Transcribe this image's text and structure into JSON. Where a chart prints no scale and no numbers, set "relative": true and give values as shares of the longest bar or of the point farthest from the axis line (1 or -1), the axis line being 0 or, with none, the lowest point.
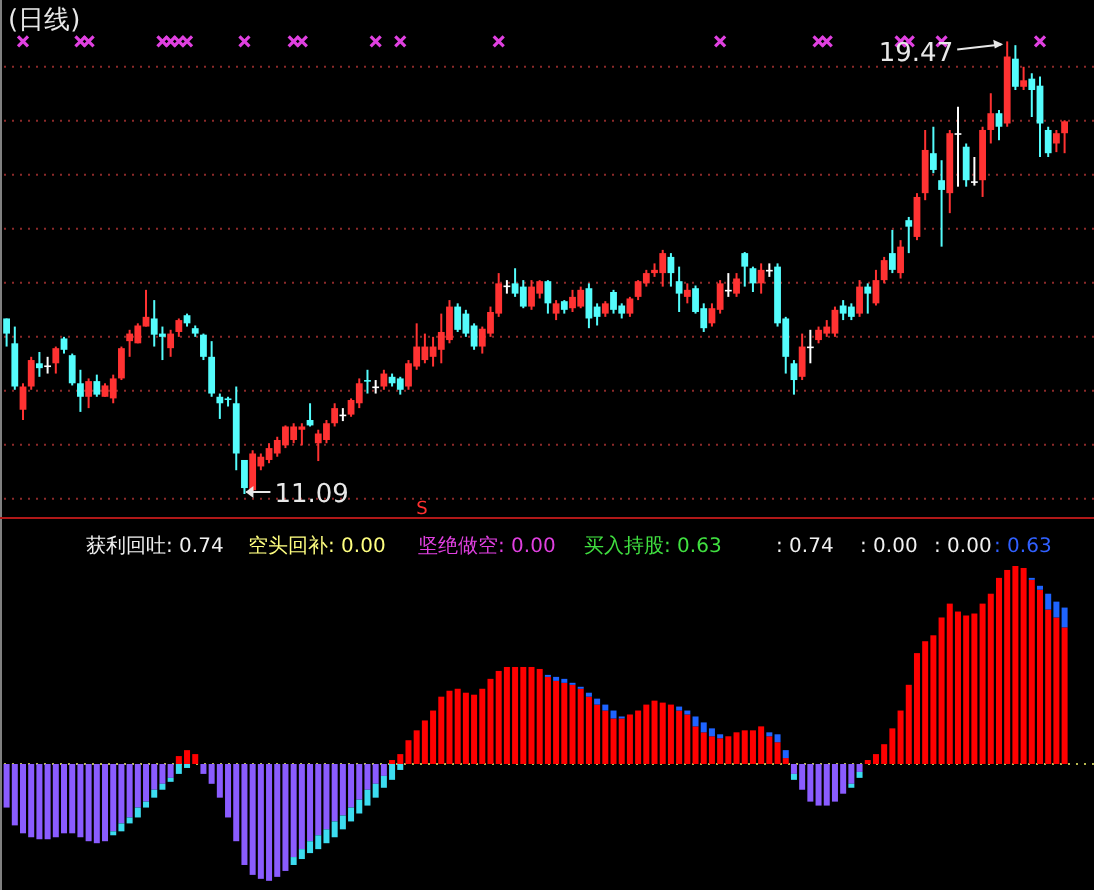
{
  "chart_data": [
    {
      "type": "candlestick",
      "title": "(日线)",
      "grid": "y",
      "categories": [
        null,
        null,
        null,
        null,
        null,
        null,
        null,
        null,
        null,
        null,
        null,
        null,
        null,
        null,
        null,
        null,
        null,
        null,
        null,
        null,
        null,
        null,
        null,
        null,
        null,
        null,
        null,
        null,
        null,
        null,
        null,
        null,
        null,
        null,
        null,
        null,
        null,
        null,
        null,
        null,
        null,
        null,
        null,
        null,
        null,
        null,
        null,
        null,
        null,
        null,
        null,
        null,
        null,
        null,
        null,
        null,
        null,
        null,
        null,
        null,
        null,
        null,
        null,
        null,
        null,
        null,
        null,
        null,
        null,
        null,
        null,
        null,
        null,
        null,
        null,
        null,
        null,
        null,
        null,
        null,
        null,
        null,
        null,
        null,
        null,
        null,
        null,
        null,
        null,
        null,
        null,
        null,
        null,
        null,
        null,
        null,
        null,
        null,
        null,
        null,
        null,
        null,
        null,
        null,
        null,
        null,
        null,
        null,
        null,
        null,
        null,
        null,
        null,
        null,
        null,
        null,
        null,
        null,
        null,
        null,
        null,
        null,
        null,
        null,
        null,
        null,
        null,
        null,
        null,
        null
      ],
      "ohlc": [
        [
          14.34,
          14.34,
          13.82,
          14.06
        ],
        [
          13.88,
          14.19,
          13.02,
          13.08
        ],
        [
          12.65,
          13.14,
          12.46,
          13.08
        ],
        [
          13.08,
          13.63,
          13.02,
          13.57
        ],
        [
          13.51,
          13.72,
          13.26,
          13.42
        ],
        [
          13.47,
          13.63,
          13.32,
          13.47
        ],
        [
          13.51,
          13.82,
          13.32,
          13.79
        ],
        [
          13.97,
          14.0,
          13.69,
          13.76
        ],
        [
          13.66,
          13.69,
          13.1,
          13.14
        ],
        [
          13.14,
          13.39,
          12.61,
          12.89
        ],
        [
          12.89,
          13.23,
          12.68,
          13.18
        ],
        [
          13.18,
          13.3,
          12.89,
          12.93
        ],
        [
          12.89,
          13.14,
          12.89,
          13.1
        ],
        [
          12.86,
          13.3,
          12.77,
          13.23
        ],
        [
          13.23,
          13.82,
          13.2,
          13.79
        ],
        [
          13.92,
          14.13,
          13.63,
          14.06
        ],
        [
          13.88,
          14.25,
          13.88,
          14.21
        ],
        [
          14.19,
          14.87,
          14.19,
          14.37
        ],
        [
          14.34,
          14.68,
          13.82,
          14.04
        ],
        [
          14.06,
          14.19,
          13.57,
          14.0
        ],
        [
          13.79,
          14.13,
          13.63,
          14.06
        ],
        [
          14.09,
          14.34,
          14.0,
          14.31
        ],
        [
          14.4,
          14.43,
          14.19,
          14.25
        ],
        [
          14.16,
          14.21,
          14.0,
          14.06
        ],
        [
          14.04,
          14.06,
          13.57,
          13.63
        ],
        [
          13.63,
          13.92,
          12.89,
          12.95
        ],
        [
          12.89,
          12.95,
          12.48,
          12.77
        ],
        [
          12.86,
          12.89,
          12.71,
          12.83
        ],
        [
          12.77,
          13.08,
          11.53,
          11.84
        ],
        [
          11.72,
          11.72,
          11.09,
          11.2
        ],
        [
          11.16,
          11.9,
          11.13,
          11.84
        ],
        [
          11.6,
          11.84,
          11.53,
          11.78
        ],
        [
          11.72,
          12.03,
          11.66,
          11.94
        ],
        [
          11.84,
          12.15,
          11.78,
          12.09
        ],
        [
          11.99,
          12.36,
          11.94,
          12.34
        ],
        [
          12.09,
          12.4,
          12.03,
          12.34
        ],
        [
          12.28,
          12.4,
          11.99,
          12.34
        ],
        [
          12.46,
          12.77,
          12.34,
          12.36
        ],
        [
          12.03,
          12.28,
          11.7,
          12.21
        ],
        [
          12.09,
          12.46,
          12.03,
          12.4
        ],
        [
          12.4,
          12.77,
          12.34,
          12.68
        ],
        [
          12.56,
          12.68,
          12.44,
          12.56
        ],
        [
          12.56,
          12.86,
          12.52,
          12.83
        ],
        [
          12.77,
          13.23,
          12.68,
          13.14
        ],
        [
          13.2,
          13.39,
          12.95,
          13.18
        ],
        [
          13.08,
          13.2,
          12.95,
          13.08
        ],
        [
          13.08,
          13.39,
          13.02,
          13.32
        ],
        [
          13.26,
          13.32,
          13.08,
          13.14
        ],
        [
          13.23,
          13.26,
          12.93,
          13.02
        ],
        [
          13.08,
          13.57,
          13.02,
          13.51
        ],
        [
          13.45,
          14.25,
          13.39,
          13.82
        ],
        [
          13.57,
          14.06,
          13.51,
          13.82
        ],
        [
          13.63,
          14.0,
          13.45,
          13.82
        ],
        [
          13.76,
          14.43,
          13.51,
          14.09
        ],
        [
          13.94,
          14.68,
          13.88,
          14.56
        ],
        [
          14.56,
          14.62,
          14.09,
          14.13
        ],
        [
          14.43,
          14.5,
          14.0,
          14.06
        ],
        [
          14.21,
          14.25,
          13.76,
          13.82
        ],
        [
          13.82,
          14.19,
          13.69,
          14.15
        ],
        [
          14.06,
          14.56,
          14.0,
          14.46
        ],
        [
          14.43,
          15.18,
          14.37,
          14.99
        ],
        [
          14.95,
          15.05,
          14.8,
          14.95
        ],
        [
          14.99,
          15.27,
          14.74,
          14.8
        ],
        [
          14.93,
          15.05,
          14.53,
          14.56
        ],
        [
          14.56,
          15.05,
          14.5,
          14.93
        ],
        [
          14.8,
          15.05,
          14.71,
          15.03
        ],
        [
          15.03,
          15.05,
          14.43,
          14.62
        ],
        [
          14.43,
          14.68,
          14.31,
          14.62
        ],
        [
          14.66,
          14.68,
          14.43,
          14.5
        ],
        [
          14.53,
          14.87,
          14.46,
          14.74
        ],
        [
          14.56,
          14.93,
          14.53,
          14.87
        ],
        [
          14.9,
          14.99,
          14.16,
          14.34
        ],
        [
          14.56,
          14.62,
          14.21,
          14.37
        ],
        [
          14.43,
          14.66,
          14.37,
          14.62
        ],
        [
          14.83,
          14.87,
          14.43,
          14.5
        ],
        [
          14.58,
          14.62,
          14.34,
          14.43
        ],
        [
          14.43,
          14.74,
          14.37,
          14.71
        ],
        [
          14.74,
          15.05,
          14.68,
          15.03
        ],
        [
          14.99,
          15.24,
          14.93,
          15.18
        ],
        [
          15.18,
          15.36,
          15.11,
          15.24
        ],
        [
          15.18,
          15.61,
          14.93,
          15.55
        ],
        [
          15.48,
          15.55,
          14.93,
          15.18
        ],
        [
          15.03,
          15.3,
          14.46,
          14.8
        ],
        [
          14.74,
          14.99,
          14.62,
          14.87
        ],
        [
          14.9,
          14.95,
          14.43,
          14.46
        ],
        [
          14.53,
          14.62,
          14.09,
          14.16
        ],
        [
          14.25,
          14.62,
          14.19,
          14.53
        ],
        [
          14.5,
          15.05,
          14.43,
          14.99
        ],
        [
          14.87,
          15.18,
          14.74,
          14.87
        ],
        [
          14.8,
          15.18,
          14.74,
          15.08
        ],
        [
          15.55,
          15.57,
          14.93,
          15.3
        ],
        [
          15.27,
          15.3,
          14.83,
          14.99
        ],
        [
          14.99,
          15.36,
          14.8,
          15.24
        ],
        [
          15.24,
          15.36,
          15.11,
          15.24
        ],
        [
          15.3,
          15.36,
          14.19,
          14.25
        ],
        [
          14.34,
          14.37,
          13.32,
          13.63
        ],
        [
          13.51,
          13.57,
          12.93,
          13.2
        ],
        [
          13.26,
          14.06,
          13.2,
          13.82
        ],
        [
          13.82,
          14.13,
          13.51,
          13.82
        ],
        [
          13.94,
          14.19,
          13.88,
          14.13
        ],
        [
          14.06,
          14.31,
          14.0,
          14.19
        ],
        [
          14.06,
          14.56,
          14.0,
          14.5
        ],
        [
          14.58,
          14.68,
          14.31,
          14.43
        ],
        [
          14.56,
          14.62,
          14.31,
          14.37
        ],
        [
          14.43,
          15.05,
          14.37,
          14.93
        ],
        [
          14.93,
          14.99,
          14.43,
          14.8
        ],
        [
          14.62,
          15.24,
          14.58,
          15.05
        ],
        [
          15.05,
          15.48,
          14.99,
          15.42
        ],
        [
          15.55,
          15.98,
          15.18,
          15.24
        ],
        [
          15.18,
          15.79,
          15.08,
          15.67
        ],
        [
          16.16,
          16.22,
          15.55,
          16.04
        ],
        [
          15.85,
          16.66,
          15.79,
          16.59
        ],
        [
          16.66,
          17.83,
          16.53,
          17.46
        ],
        [
          17.4,
          17.89,
          17.03,
          17.09
        ],
        [
          16.9,
          17.27,
          15.67,
          16.72
        ],
        [
          16.66,
          17.83,
          16.29,
          17.77
        ],
        [
          17.77,
          18.26,
          16.78,
          17.77
        ],
        [
          17.52,
          17.58,
          16.78,
          16.9
        ],
        [
          16.88,
          17.33,
          16.8,
          16.88
        ],
        [
          16.9,
          17.89,
          16.59,
          17.83
        ],
        [
          17.83,
          18.51,
          17.58,
          18.14
        ],
        [
          18.14,
          18.2,
          17.64,
          17.89
        ],
        [
          17.95,
          19.47,
          17.89,
          19.19
        ],
        [
          19.15,
          19.4,
          18.57,
          18.63
        ],
        [
          18.63,
          19.0,
          18.57,
          18.75
        ],
        [
          18.78,
          18.88,
          18.07,
          18.57
        ],
        [
          18.65,
          18.82,
          17.33,
          17.95
        ],
        [
          17.83,
          17.89,
          17.33,
          17.4
        ],
        [
          17.58,
          17.83,
          17.42,
          17.77
        ],
        [
          17.77,
          18.01,
          17.4,
          17.99
        ]
      ],
      "colors": [
        "#54fcfc",
        "#54fcfc",
        "#ff3232",
        "#ff3232",
        "#54fcfc",
        "#ffffff",
        "#ff3232",
        "#54fcfc",
        "#54fcfc",
        "#54fcfc",
        "#ff3232",
        "#54fcfc",
        "#ff3232",
        "#ff3232",
        "#ff3232",
        "#ff3232",
        "#ff3232",
        "#ff3232",
        "#54fcfc",
        "#54fcfc",
        "#ff3232",
        "#ff3232",
        "#54fcfc",
        "#54fcfc",
        "#54fcfc",
        "#54fcfc",
        "#54fcfc",
        "#54fcfc",
        "#54fcfc",
        "#54fcfc",
        "#ff3232",
        "#ff3232",
        "#ff3232",
        "#ff3232",
        "#ff3232",
        "#ff3232",
        "#ff3232",
        "#54fcfc",
        "#ff3232",
        "#ff3232",
        "#ff3232",
        "#ffffff",
        "#ff3232",
        "#ff3232",
        "#54fcfc",
        "#ffffff",
        "#ff3232",
        "#54fcfc",
        "#54fcfc",
        "#ff3232",
        "#ff3232",
        "#ff3232",
        "#ff3232",
        "#ff3232",
        "#ff3232",
        "#54fcfc",
        "#54fcfc",
        "#54fcfc",
        "#ff3232",
        "#ff3232",
        "#ff3232",
        "#ffffff",
        "#54fcfc",
        "#54fcfc",
        "#ff3232",
        "#ff3232",
        "#54fcfc",
        "#ff3232",
        "#54fcfc",
        "#ff3232",
        "#ff3232",
        "#54fcfc",
        "#54fcfc",
        "#ff3232",
        "#54fcfc",
        "#54fcfc",
        "#ff3232",
        "#ff3232",
        "#ff3232",
        "#ff3232",
        "#ff3232",
        "#54fcfc",
        "#54fcfc",
        "#ff3232",
        "#54fcfc",
        "#54fcfc",
        "#ff3232",
        "#ff3232",
        "#ffffff",
        "#ff3232",
        "#54fcfc",
        "#54fcfc",
        "#ff3232",
        "#ffffff",
        "#54fcfc",
        "#54fcfc",
        "#54fcfc",
        "#ff3232",
        "#ffffff",
        "#ff3232",
        "#ff3232",
        "#ff3232",
        "#54fcfc",
        "#54fcfc",
        "#ff3232",
        "#54fcfc",
        "#ff3232",
        "#ff3232",
        "#54fcfc",
        "#ff3232",
        "#54fcfc",
        "#ff3232",
        "#ff3232",
        "#54fcfc",
        "#54fcfc",
        "#ff3232",
        "#ffffff",
        "#54fcfc",
        "#ffffff",
        "#ff3232",
        "#ff3232",
        "#54fcfc",
        "#ff3232",
        "#54fcfc",
        "#ff3232",
        "#54fcfc",
        "#54fcfc",
        "#54fcfc",
        "#ff3232",
        "#ff3232"
      ],
      "yticks": [
        {
          "value": 11,
          "label": null
        },
        {
          "value": 12,
          "label": null
        },
        {
          "value": 13,
          "label": null
        },
        {
          "value": 14,
          "label": null
        },
        {
          "value": 15,
          "label": null
        },
        {
          "value": 16,
          "label": null
        },
        {
          "value": 17,
          "label": null
        },
        {
          "value": 18,
          "label": null
        },
        {
          "value": 19,
          "label": null
        }
      ],
      "annotations": [
        {
          "text": "19.47",
          "y": 19.47
        },
        "11.09",
        "S"
      ],
      "series": [
        {
          "type": "scatter",
          "color": "#e040e0",
          "marker": "cross",
          "values": [
            null,
            null,
            19.47,
            null,
            null,
            null,
            null,
            null,
            null,
            19.47,
            19.47,
            null,
            null,
            null,
            null,
            null,
            null,
            null,
            null,
            19.47,
            19.47,
            19.47,
            19.47,
            null,
            null,
            null,
            null,
            null,
            null,
            19.47,
            null,
            null,
            null,
            null,
            null,
            19.47,
            19.47,
            null,
            null,
            null,
            null,
            null,
            null,
            null,
            null,
            19.47,
            null,
            null,
            19.47,
            null,
            null,
            null,
            null,
            null,
            null,
            null,
            null,
            null,
            null,
            null,
            19.47,
            null,
            null,
            null,
            null,
            null,
            null,
            null,
            null,
            null,
            null,
            null,
            null,
            null,
            null,
            null,
            null,
            null,
            null,
            null,
            null,
            null,
            null,
            null,
            null,
            null,
            null,
            19.47,
            null,
            null,
            null,
            null,
            null,
            null,
            null,
            null,
            null,
            null,
            null,
            19.47,
            19.47,
            null,
            null,
            null,
            null,
            null,
            null,
            null,
            null,
            19.47,
            19.47,
            null,
            null,
            null,
            19.47,
            null,
            null,
            null,
            null,
            null,
            null,
            null,
            null,
            null,
            null,
            null,
            19.47,
            null,
            null,
            null
          ]
        }
      ]
    },
    {
      "type": "bar",
      "relative": true,
      "stacked": true,
      "categories": [
        null,
        null,
        null,
        null,
        null,
        null,
        null,
        null,
        null,
        null,
        null,
        null,
        null,
        null,
        null,
        null,
        null,
        null,
        null,
        null,
        null,
        null,
        null,
        null,
        null,
        null,
        null,
        null,
        null,
        null,
        null,
        null,
        null,
        null,
        null,
        null,
        null,
        null,
        null,
        null,
        null,
        null,
        null,
        null,
        null,
        null,
        null,
        null,
        null,
        null,
        null,
        null,
        null,
        null,
        null,
        null,
        null,
        null,
        null,
        null,
        null,
        null,
        null,
        null,
        null,
        null,
        null,
        null,
        null,
        null,
        null,
        null,
        null,
        null,
        null,
        null,
        null,
        null,
        null,
        null,
        null,
        null,
        null,
        null,
        null,
        null,
        null,
        null,
        null,
        null,
        null,
        null,
        null,
        null,
        null,
        null,
        null,
        null,
        null,
        null,
        null,
        null,
        null,
        null,
        null,
        null,
        null,
        null,
        null,
        null,
        null,
        null,
        null,
        null,
        null,
        null,
        null,
        null,
        null,
        null,
        null,
        null,
        null,
        null,
        null,
        null,
        null,
        null,
        null,
        null
      ],
      "ref_lines": [
        {
          "axis": "y",
          "value": 0,
          "color": "#b8b850",
          "line_style": "dotted"
        }
      ],
      "annotations": [
        "获利回吐: 0.74",
        "空头回补: 0.00",
        "坚绝做空: 0.00",
        "买入持股: 0.63",
        ": 0.74",
        ": 0.00",
        ": 0.00",
        ": 0.63"
      ],
      "series": [
        {
          "values": [
            -0.22,
            -0.31,
            -0.35,
            -0.37,
            -0.38,
            -0.38,
            -0.37,
            -0.35,
            -0.35,
            -0.37,
            -0.39,
            -0.4,
            -0.39,
            -0.34,
            -0.3,
            -0.27,
            -0.22,
            -0.19,
            -0.13,
            -0.1,
            -0.07,
            0.04,
            0.07,
            0.05,
            -0.05,
            -0.1,
            -0.17,
            -0.27,
            -0.39,
            -0.51,
            -0.56,
            -0.58,
            -0.59,
            -0.57,
            -0.54,
            -0.47,
            -0.43,
            -0.39,
            -0.36,
            -0.33,
            -0.29,
            -0.26,
            -0.22,
            -0.18,
            -0.13,
            -0.1,
            -0.06,
            0.02,
            0.05,
            0.12,
            0.17,
            0.22,
            0.27,
            0.34,
            0.37,
            0.38,
            0.36,
            0.35,
            0.38,
            0.43,
            0.47,
            0.49,
            0.49,
            0.49,
            0.49,
            0.48,
            0.44,
            0.42,
            0.41,
            0.4,
            0.38,
            0.34,
            0.3,
            0.27,
            0.23,
            0.23,
            0.25,
            0.27,
            0.3,
            0.32,
            0.31,
            0.3,
            0.27,
            0.25,
            0.19,
            0.16,
            0.14,
            0.13,
            0.14,
            0.16,
            0.17,
            0.17,
            0.19,
            0.14,
            0.11,
            0.03,
            -0.05,
            -0.13,
            -0.19,
            -0.21,
            -0.21,
            -0.19,
            -0.15,
            -0.1,
            -0.04,
            0.02,
            0.05,
            0.1,
            0.18,
            0.27,
            0.4,
            0.56,
            0.62,
            0.65,
            0.74,
            0.81,
            0.77,
            0.75,
            0.76,
            0.81,
            0.86,
            0.94,
            0.98,
            1,
            0.99,
            0.93,
            0.88,
            0.78,
            0.74,
            0.69
          ],
          "colors": [
            "#8a5cff",
            "#8a5cff",
            "#8a5cff",
            "#8a5cff",
            "#8a5cff",
            "#8a5cff",
            "#8a5cff",
            "#8a5cff",
            "#8a5cff",
            "#8a5cff",
            "#8a5cff",
            "#8a5cff",
            "#8a5cff",
            "#8a5cff",
            "#8a5cff",
            "#8a5cff",
            "#8a5cff",
            "#8a5cff",
            "#8a5cff",
            "#8a5cff",
            "#8a5cff",
            "#ff0000",
            "#ff0000",
            "#ff0000",
            "#8a5cff",
            "#8a5cff",
            "#8a5cff",
            "#8a5cff",
            "#8a5cff",
            "#8a5cff",
            "#8a5cff",
            "#8a5cff",
            "#8a5cff",
            "#8a5cff",
            "#8a5cff",
            "#8a5cff",
            "#8a5cff",
            "#8a5cff",
            "#8a5cff",
            "#8a5cff",
            "#8a5cff",
            "#8a5cff",
            "#8a5cff",
            "#8a5cff",
            "#8a5cff",
            "#8a5cff",
            "#8a5cff",
            "#ff0000",
            "#ff0000",
            "#ff0000",
            "#ff0000",
            "#ff0000",
            "#ff0000",
            "#ff0000",
            "#ff0000",
            "#ff0000",
            "#ff0000",
            "#ff0000",
            "#ff0000",
            "#ff0000",
            "#ff0000",
            "#ff0000",
            "#ff0000",
            "#ff0000",
            "#ff0000",
            "#ff0000",
            "#ff0000",
            "#ff0000",
            "#ff0000",
            "#ff0000",
            "#ff0000",
            "#ff0000",
            "#ff0000",
            "#ff0000",
            "#ff0000",
            "#ff0000",
            "#ff0000",
            "#ff0000",
            "#ff0000",
            "#ff0000",
            "#ff0000",
            "#ff0000",
            "#ff0000",
            "#ff0000",
            "#ff0000",
            "#ff0000",
            "#ff0000",
            "#ff0000",
            "#ff0000",
            "#ff0000",
            "#ff0000",
            "#ff0000",
            "#ff0000",
            "#ff0000",
            "#ff0000",
            "#ff0000",
            "#8a5cff",
            "#8a5cff",
            "#8a5cff",
            "#8a5cff",
            "#8a5cff",
            "#8a5cff",
            "#8a5cff",
            "#8a5cff",
            "#8a5cff",
            "#ff0000",
            "#ff0000",
            "#ff0000",
            "#ff0000",
            "#ff0000",
            "#ff0000",
            "#ff0000",
            "#ff0000",
            "#ff0000",
            "#ff0000",
            "#ff0000",
            "#ff0000",
            "#ff0000",
            "#ff0000",
            "#ff0000",
            "#ff0000",
            "#ff0000",
            "#ff0000",
            "#ff0000",
            "#ff0000",
            "#ff0000",
            "#ff0000",
            "#ff0000",
            "#ff0000",
            "#ff0000"
          ]
        },
        {
          "values": [
            0,
            0,
            0,
            0,
            0,
            0,
            0,
            0,
            0,
            0,
            0,
            0,
            0,
            -0.02,
            -0.04,
            -0.03,
            -0.05,
            -0.03,
            -0.04,
            -0.03,
            -0.02,
            -0.05,
            -0.02,
            0,
            0,
            0,
            0,
            0,
            0,
            0,
            0,
            0,
            0,
            0,
            0,
            -0.04,
            -0.05,
            -0.06,
            -0.07,
            -0.07,
            -0.08,
            -0.07,
            -0.07,
            -0.07,
            -0.08,
            -0.07,
            -0.06,
            -0.08,
            -0.03,
            0,
            0,
            0,
            0,
            0,
            0,
            0,
            0,
            0,
            0,
            0,
            0,
            0,
            0,
            0,
            0,
            0,
            0.01,
            0.02,
            0.02,
            0.01,
            0.01,
            0.02,
            0.03,
            0.03,
            0.04,
            0.01,
            0,
            0,
            0,
            0,
            0,
            0,
            0.02,
            0.02,
            0.05,
            0.05,
            0.04,
            0.02,
            0,
            0,
            0,
            0,
            0,
            0.02,
            0.04,
            0.04,
            -0.03,
            0,
            0,
            0,
            0,
            0,
            0,
            -0.02,
            -0.03,
            0,
            0,
            0,
            0,
            0,
            0,
            0,
            0,
            0,
            0,
            0,
            0,
            0,
            0,
            0,
            0,
            0,
            0,
            0,
            0,
            0.01,
            0.02,
            0.08,
            0.08,
            0.1
          ],
          "colors": [
            null,
            null,
            null,
            null,
            null,
            null,
            null,
            null,
            null,
            null,
            null,
            null,
            null,
            "#3cdcf0",
            "#3cdcf0",
            "#3cdcf0",
            "#3cdcf0",
            "#3cdcf0",
            "#3cdcf0",
            "#3cdcf0",
            "#3cdcf0",
            "#3cdcf0",
            "#3cdcf0",
            null,
            null,
            null,
            null,
            null,
            null,
            null,
            null,
            null,
            null,
            null,
            null,
            "#3cdcf0",
            "#3cdcf0",
            "#3cdcf0",
            "#3cdcf0",
            "#3cdcf0",
            "#3cdcf0",
            "#3cdcf0",
            "#3cdcf0",
            "#3cdcf0",
            "#3cdcf0",
            "#3cdcf0",
            "#3cdcf0",
            "#3cdcf0",
            "#3cdcf0",
            null,
            null,
            null,
            null,
            null,
            null,
            null,
            null,
            null,
            null,
            null,
            null,
            null,
            null,
            null,
            null,
            null,
            "#1e64ff",
            "#1e64ff",
            "#1e64ff",
            "#1e64ff",
            "#1e64ff",
            "#1e64ff",
            "#1e64ff",
            "#1e64ff",
            "#1e64ff",
            "#1e64ff",
            null,
            null,
            null,
            null,
            null,
            null,
            "#1e64ff",
            "#1e64ff",
            "#1e64ff",
            "#1e64ff",
            "#1e64ff",
            "#1e64ff",
            null,
            null,
            null,
            null,
            null,
            "#1e64ff",
            "#1e64ff",
            "#1e64ff",
            "#3cdcf0",
            null,
            null,
            null,
            null,
            null,
            null,
            "#3cdcf0",
            "#3cdcf0",
            null,
            null,
            null,
            null,
            null,
            null,
            null,
            null,
            null,
            null,
            null,
            null,
            null,
            null,
            null,
            null,
            null,
            null,
            null,
            null,
            "#1e64ff",
            "#1e64ff",
            "#1e64ff",
            "#1e64ff",
            "#1e64ff"
          ]
        }
      ]
    }
  ]
}
